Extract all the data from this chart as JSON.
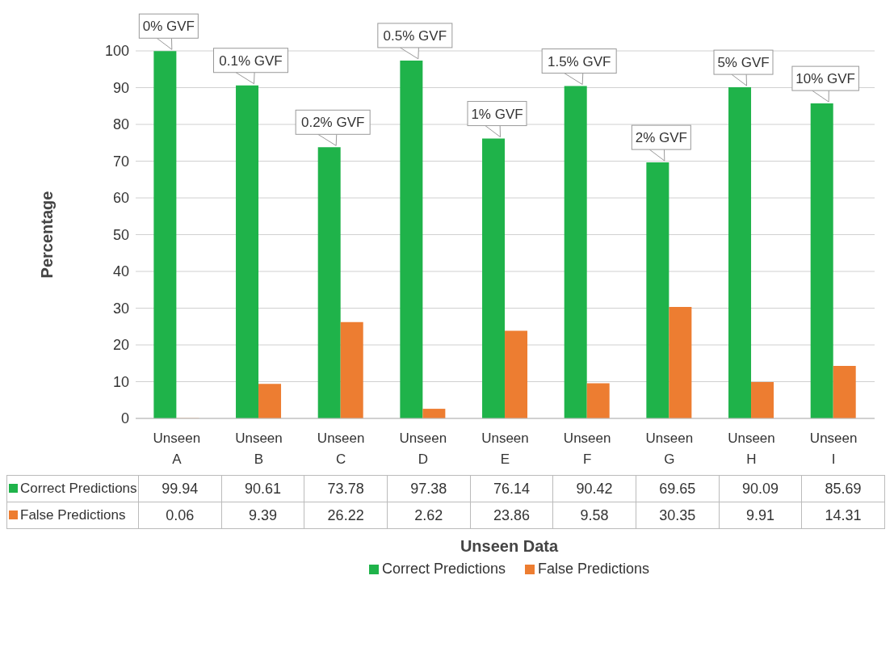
{
  "chart_data": {
    "type": "bar",
    "xlabel": "Unseen Data",
    "ylabel": "Percentage",
    "categories": [
      "Unseen A",
      "Unseen B",
      "Unseen C",
      "Unseen D",
      "Unseen E",
      "Unseen F",
      "Unseen G",
      "Unseen H",
      "Unseen I"
    ],
    "series": [
      {
        "name": "Correct Predictions",
        "color": "#1fb34a",
        "values": [
          99.94,
          90.61,
          73.78,
          97.38,
          76.14,
          90.42,
          69.65,
          90.09,
          85.69
        ]
      },
      {
        "name": "False Predictions",
        "color": "#ed7d31",
        "values": [
          0.06,
          9.39,
          26.22,
          2.62,
          23.86,
          9.58,
          30.35,
          9.91,
          14.31
        ]
      }
    ],
    "ylim": [
      0,
      100
    ],
    "yticks": [
      0,
      10,
      20,
      30,
      40,
      50,
      60,
      70,
      80,
      90,
      100
    ],
    "grid": "y",
    "legend": "bottom",
    "data_labels": true,
    "annotations": [
      {
        "text": "0% GVF",
        "x": "Unseen A",
        "y": 99.94
      },
      {
        "text": "0.1% GVF",
        "x": "Unseen B",
        "y": 90.61
      },
      {
        "text": "0.2% GVF",
        "x": "Unseen C",
        "y": 73.78
      },
      {
        "text": "0.5% GVF",
        "x": "Unseen D",
        "y": 97.38
      },
      {
        "text": "1% GVF",
        "x": "Unseen E",
        "y": 76.14
      },
      {
        "text": "1.5% GVF",
        "x": "Unseen F",
        "y": 90.42
      },
      {
        "text": "2% GVF",
        "x": "Unseen G",
        "y": 69.65
      },
      {
        "text": "5% GVF",
        "x": "Unseen H",
        "y": 90.09
      },
      {
        "text": "10% GVF",
        "x": "Unseen I",
        "y": 85.69
      }
    ]
  }
}
